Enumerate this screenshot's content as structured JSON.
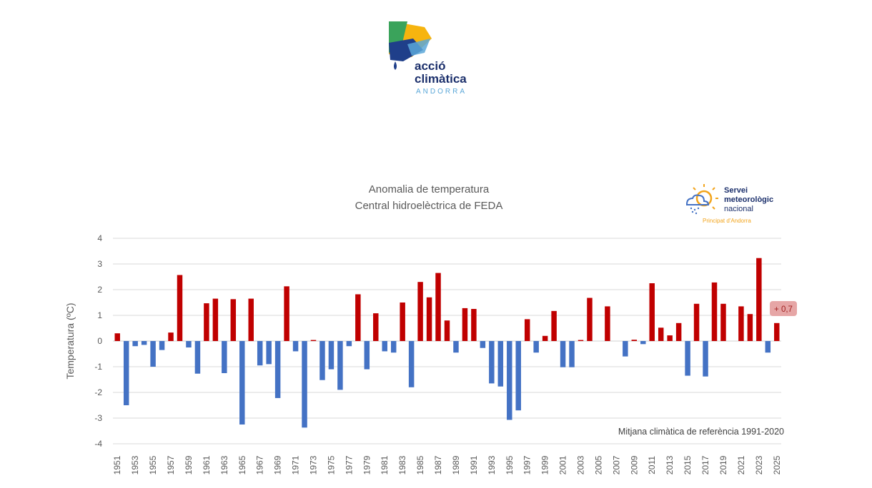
{
  "logo": {
    "line1": "acció",
    "line2": "climàtica",
    "line3": "ANDORRA"
  },
  "smn": {
    "line1": "Servei",
    "line2": "meteorològic",
    "line3": "nacional",
    "sub": "Principat d'Andorra"
  },
  "colors": {
    "positive": "#c00000",
    "negative": "#4472c4",
    "badge": "#e6a6a6",
    "badge_text": "#a12020",
    "grid": "#d9d9d9"
  },
  "chart_data": {
    "type": "bar",
    "title": [
      "Anomalia de temperatura",
      "Central hidroelèctrica de FEDA"
    ],
    "ylabel": "Temperatura (ºC)",
    "xlabel": "",
    "ylim": [
      -4,
      4
    ],
    "yticks": [
      4,
      3,
      2,
      1,
      0,
      -1,
      -2,
      -3,
      -4
    ],
    "reference_note": "Mitjana climàtica de referència 1991-2020",
    "last_value_label": "+ 0,7",
    "categories": [
      1951,
      1952,
      1953,
      1954,
      1955,
      1956,
      1957,
      1958,
      1959,
      1960,
      1961,
      1962,
      1963,
      1964,
      1965,
      1966,
      1967,
      1968,
      1969,
      1970,
      1971,
      1972,
      1973,
      1974,
      1975,
      1976,
      1977,
      1978,
      1979,
      1980,
      1981,
      1982,
      1983,
      1984,
      1985,
      1986,
      1987,
      1988,
      1989,
      1990,
      1991,
      1992,
      1993,
      1994,
      1995,
      1996,
      1997,
      1998,
      1999,
      2000,
      2001,
      2002,
      2003,
      2004,
      2005,
      2006,
      2007,
      2008,
      2009,
      2010,
      2011,
      2012,
      2013,
      2014,
      2015,
      2016,
      2017,
      2018,
      2019,
      2020,
      2021,
      2022,
      2023,
      2024,
      2025
    ],
    "tick_labels": [
      "1951",
      "1953",
      "1955",
      "1957",
      "1959",
      "1961",
      "1963",
      "1965",
      "1967",
      "1969",
      "1971",
      "1973",
      "1975",
      "1977",
      "1979",
      "1981",
      "1983",
      "1985",
      "1987",
      "1989",
      "1991",
      "1993",
      "1995",
      "1997",
      "1999",
      "2001",
      "2003",
      "2005",
      "2007",
      "2009",
      "2011",
      "2013",
      "2015",
      "2017",
      "2019",
      "2021",
      "2023",
      "2025"
    ],
    "values": [
      0.3,
      -2.5,
      -0.2,
      -0.15,
      -1.0,
      -0.35,
      0.33,
      2.57,
      -0.25,
      -1.27,
      1.47,
      1.65,
      -1.25,
      1.63,
      -3.25,
      1.65,
      -0.95,
      -0.9,
      -2.22,
      2.13,
      -0.4,
      -3.37,
      0.04,
      -1.52,
      -1.1,
      -1.9,
      -0.2,
      1.82,
      -1.1,
      1.08,
      -0.4,
      -0.45,
      1.5,
      -1.8,
      2.3,
      1.7,
      2.65,
      0.8,
      -0.45,
      1.28,
      1.25,
      -0.27,
      -1.65,
      -1.77,
      -3.07,
      -2.7,
      0.85,
      -0.45,
      0.2,
      1.17,
      -1.02,
      -1.02,
      0.04,
      1.68,
      0.0,
      1.35,
      0.0,
      -0.6,
      0.05,
      -0.12,
      2.25,
      0.52,
      0.22,
      0.7,
      -1.35,
      1.45,
      -1.38,
      2.28,
      1.45,
      0.0,
      1.35,
      1.05,
      3.23,
      -0.45,
      0.7
    ]
  }
}
